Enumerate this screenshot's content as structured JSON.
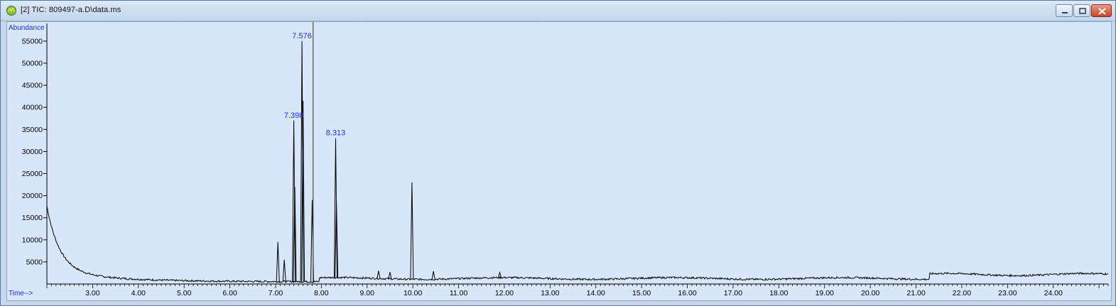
{
  "window": {
    "title": "[2] TIC: 809497-a.D\\data.ms",
    "icon": "chromatogram-app-icon",
    "controls": [
      "minimize-icon",
      "maximize-icon",
      "close-icon"
    ]
  },
  "chart_data": {
    "type": "line",
    "ylabel": "Abundance",
    "xlabel": "Time-->",
    "xlim": [
      2.0,
      25.2
    ],
    "ylim": [
      0,
      59000
    ],
    "x_ticks": [
      "3.00",
      "4.00",
      "5.00",
      "6.00",
      "7.00",
      "8.00",
      "9.00",
      "10.00",
      "11.00",
      "12.00",
      "13.00",
      "14.00",
      "15.00",
      "16.00",
      "17.00",
      "18.00",
      "19.00",
      "20.00",
      "21.00",
      "22.00",
      "23.00",
      "24.00"
    ],
    "y_ticks": [
      "5000",
      "10000",
      "15000",
      "20000",
      "25000",
      "30000",
      "35000",
      "40000",
      "45000",
      "50000",
      "55000"
    ],
    "cursor_x": 7.82,
    "peaks": [
      {
        "x": 7.05,
        "y": 9500
      },
      {
        "x": 7.19,
        "y": 5500
      },
      {
        "x": 7.398,
        "y": 37000
      },
      {
        "x": 7.42,
        "y": 22000
      },
      {
        "x": 7.576,
        "y": 55000
      },
      {
        "x": 7.6,
        "y": 41500
      },
      {
        "x": 7.8,
        "y": 19000
      },
      {
        "x": 8.313,
        "y": 33000
      },
      {
        "x": 8.33,
        "y": 18500
      },
      {
        "x": 9.25,
        "y": 3000
      },
      {
        "x": 9.5,
        "y": 2700
      },
      {
        "x": 9.98,
        "y": 23000
      },
      {
        "x": 10.45,
        "y": 2900
      },
      {
        "x": 11.9,
        "y": 2600
      }
    ],
    "peak_labels": [
      {
        "x": 7.398,
        "y": 37000,
        "text": "7.398"
      },
      {
        "x": 7.576,
        "y": 55000,
        "text": "7.576"
      },
      {
        "x": 8.313,
        "y": 33000,
        "text": "8.313"
      }
    ],
    "colors": {
      "trace": "#000000",
      "labels": "#1f2dd8",
      "background": "#d8e6fa",
      "cursor": "#4a4a4a"
    }
  }
}
